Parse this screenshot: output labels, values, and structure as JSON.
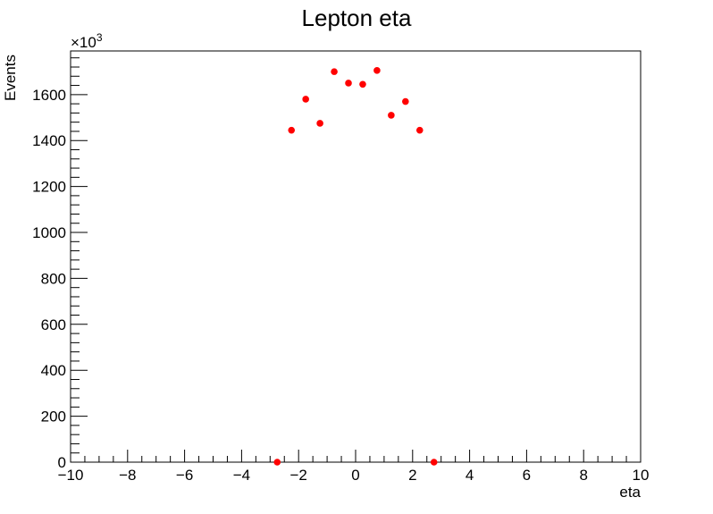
{
  "chart_data": {
    "type": "scatter",
    "title": "Lepton eta",
    "xlabel": "eta",
    "ylabel": "Events",
    "y_multiplier_label": "×10",
    "y_multiplier_exponent": "3",
    "xlim": [
      -10,
      10
    ],
    "ylim": [
      0,
      1790
    ],
    "x_ticks": [
      -10,
      -8,
      -6,
      -4,
      -2,
      0,
      2,
      4,
      6,
      8,
      10
    ],
    "x_tick_labels": [
      "−10",
      "−8",
      "−6",
      "−4",
      "−2",
      "0",
      "2",
      "4",
      "6",
      "8",
      "10"
    ],
    "y_ticks": [
      0,
      200,
      400,
      600,
      800,
      1000,
      1200,
      1400,
      1600
    ],
    "y_tick_labels": [
      "0",
      "200",
      "400",
      "600",
      "800",
      "1000",
      "1200",
      "1400",
      "1600"
    ],
    "series": [
      {
        "marker_color": "#ff0000",
        "x": [
          -2.75,
          -2.25,
          -1.75,
          -1.25,
          -0.75,
          -0.25,
          0.25,
          0.75,
          1.25,
          1.75,
          2.25,
          2.75
        ],
        "y": [
          0,
          1445,
          1580,
          1475,
          1700,
          1650,
          1645,
          1705,
          1510,
          1570,
          1445,
          0
        ]
      }
    ],
    "grid": false,
    "legend": "none"
  }
}
